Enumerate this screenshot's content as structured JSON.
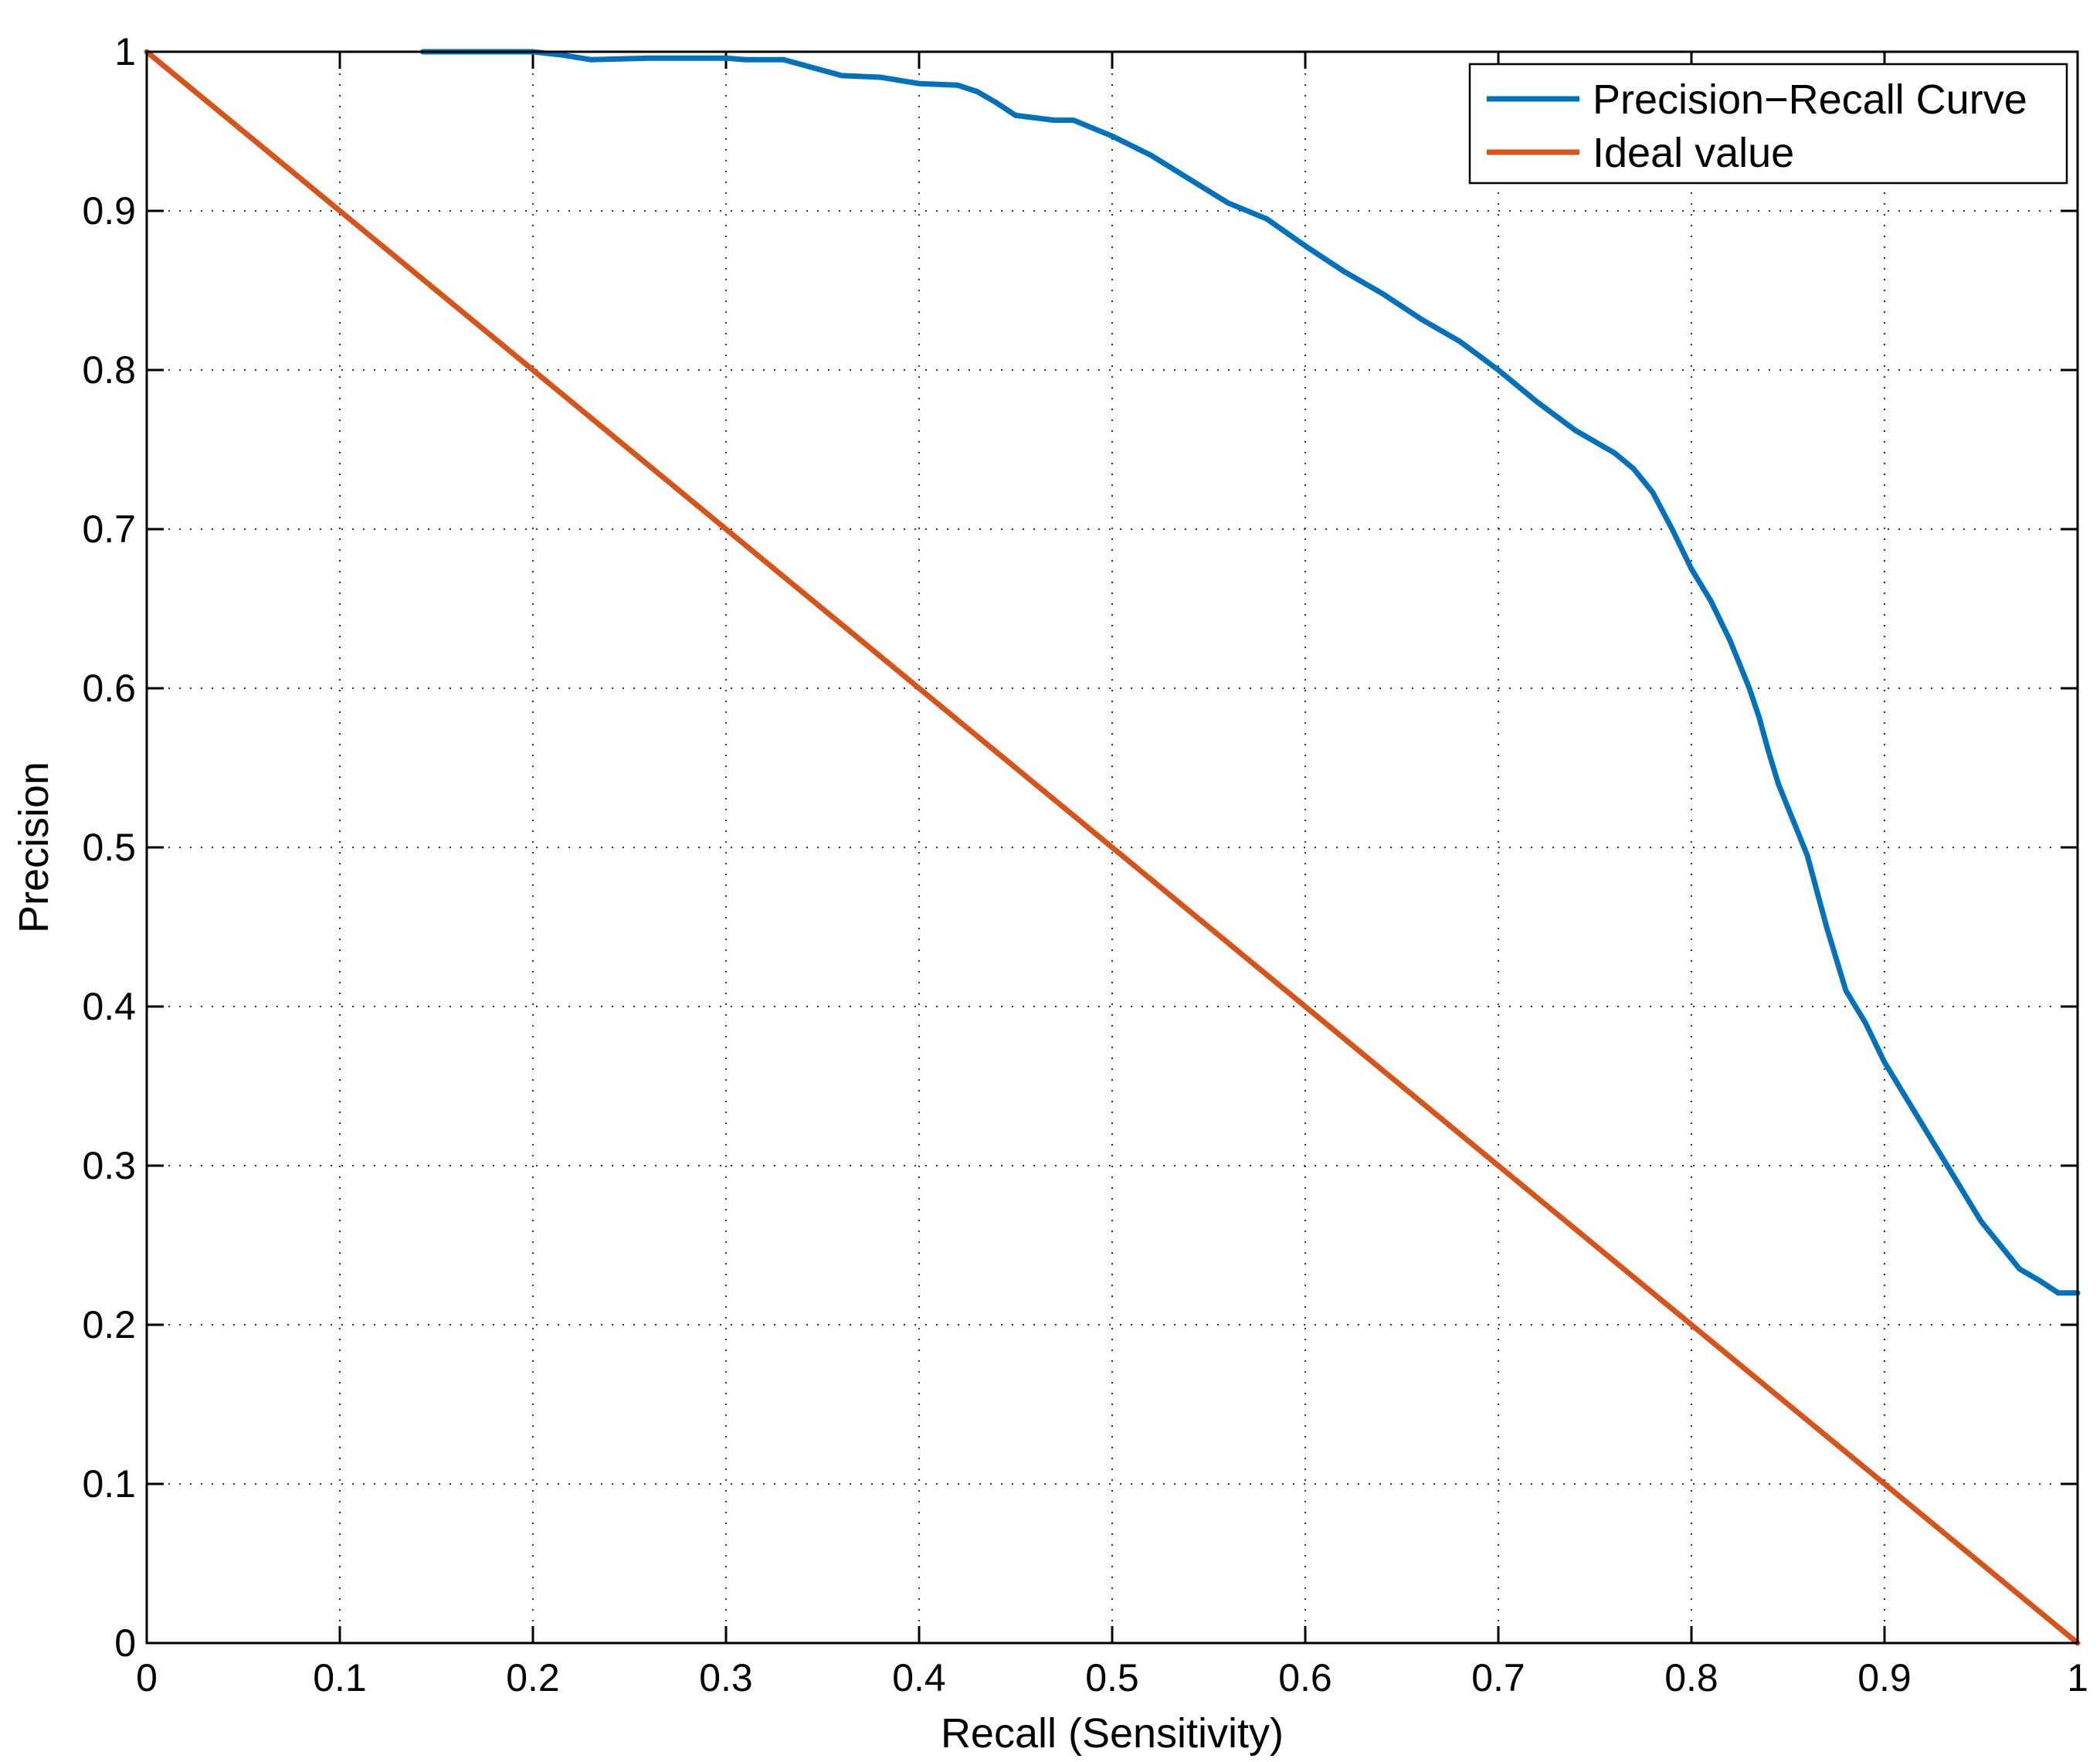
{
  "chart_data": {
    "type": "line",
    "title": "",
    "xlabel": "Recall (Sensitivity)",
    "ylabel": "Precision",
    "xlim": [
      0,
      1
    ],
    "ylim": [
      0,
      1
    ],
    "xticks": [
      0,
      0.1,
      0.2,
      0.3,
      0.4,
      0.5,
      0.6,
      0.7,
      0.8,
      0.9,
      1
    ],
    "yticks": [
      0,
      0.1,
      0.2,
      0.3,
      0.4,
      0.5,
      0.6,
      0.7,
      0.8,
      0.9,
      1
    ],
    "xtick_labels": [
      "0",
      "0.1",
      "0.2",
      "0.3",
      "0.4",
      "0.5",
      "0.6",
      "0.7",
      "0.8",
      "0.9",
      "1"
    ],
    "ytick_labels": [
      "0",
      "0.1",
      "0.2",
      "0.3",
      "0.4",
      "0.5",
      "0.6",
      "0.7",
      "0.8",
      "0.9",
      "1"
    ],
    "grid": true,
    "legend_position": "top-right",
    "series": [
      {
        "name": "Precision−Recall Curve",
        "color": "#0072BD",
        "x": [
          0.143,
          0.2,
          0.215,
          0.23,
          0.26,
          0.3,
          0.31,
          0.33,
          0.345,
          0.36,
          0.38,
          0.4,
          0.42,
          0.43,
          0.44,
          0.45,
          0.47,
          0.48,
          0.5,
          0.52,
          0.54,
          0.56,
          0.58,
          0.6,
          0.62,
          0.64,
          0.66,
          0.68,
          0.7,
          0.72,
          0.74,
          0.76,
          0.77,
          0.78,
          0.79,
          0.8,
          0.81,
          0.82,
          0.83,
          0.835,
          0.84,
          0.845,
          0.85,
          0.86,
          0.87,
          0.88,
          0.89,
          0.9,
          0.91,
          0.92,
          0.93,
          0.94,
          0.95,
          0.96,
          0.97,
          0.98,
          0.99,
          1.0
        ],
        "y": [
          1.0,
          1.0,
          0.998,
          0.995,
          0.996,
          0.996,
          0.995,
          0.995,
          0.99,
          0.985,
          0.984,
          0.98,
          0.979,
          0.975,
          0.968,
          0.96,
          0.957,
          0.957,
          0.947,
          0.935,
          0.92,
          0.905,
          0.895,
          0.878,
          0.862,
          0.848,
          0.832,
          0.818,
          0.8,
          0.78,
          0.762,
          0.748,
          0.738,
          0.723,
          0.7,
          0.675,
          0.655,
          0.63,
          0.6,
          0.582,
          0.56,
          0.54,
          0.525,
          0.495,
          0.45,
          0.41,
          0.39,
          0.365,
          0.345,
          0.325,
          0.305,
          0.285,
          0.265,
          0.25,
          0.235,
          0.228,
          0.22,
          0.22
        ]
      },
      {
        "name": "Ideal value",
        "color": "#D95319",
        "x": [
          0,
          1
        ],
        "y": [
          1,
          0
        ]
      }
    ]
  }
}
